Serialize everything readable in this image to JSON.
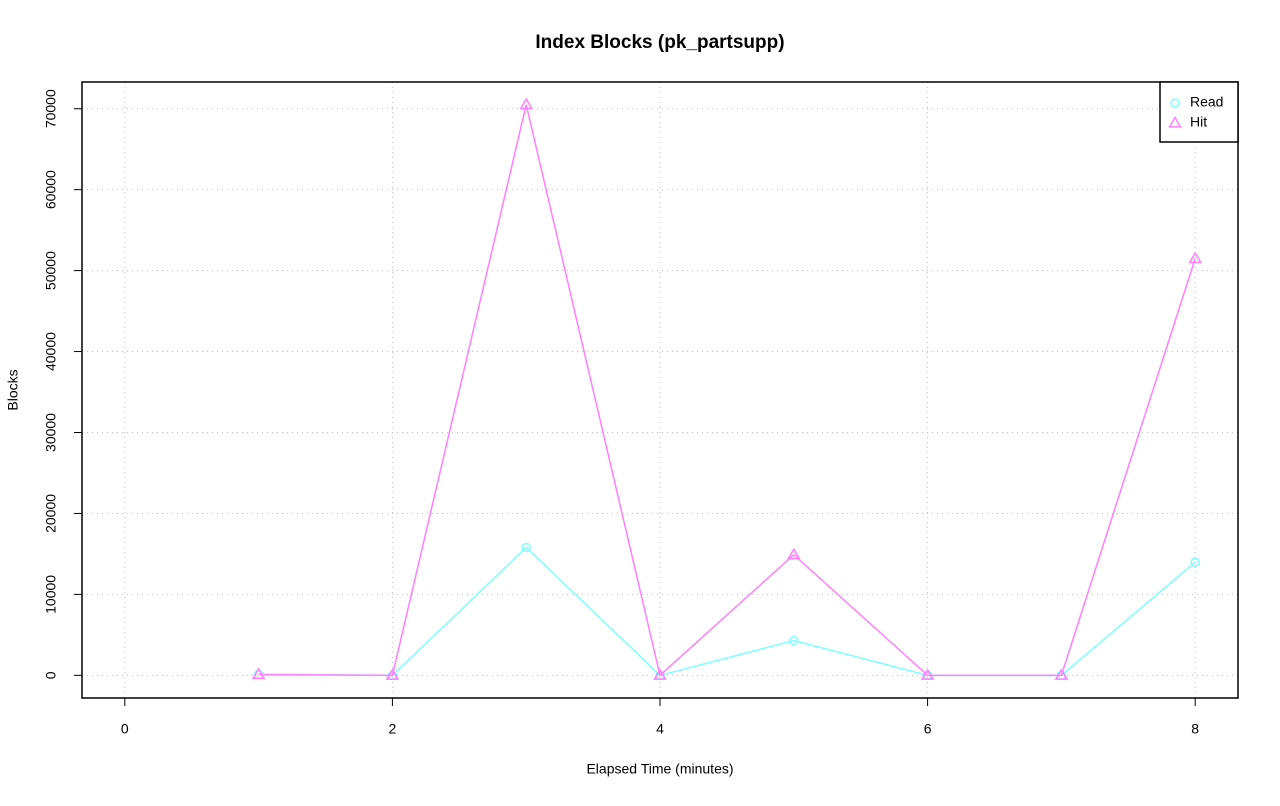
{
  "chart_data": {
    "type": "line",
    "title": "Index Blocks (pk_partsupp)",
    "x_label": "Elapsed Time (minutes)",
    "y_label": "Blocks",
    "x": [
      1,
      2,
      3,
      4,
      5,
      6,
      7,
      8
    ],
    "series": [
      {
        "name": "Read",
        "color": "#7fffff",
        "marker": "circle",
        "values": [
          100,
          0,
          15800,
          0,
          4300,
          0,
          0,
          14000
        ]
      },
      {
        "name": "Hit",
        "color": "#ff7fff",
        "marker": "triangle",
        "values": [
          100,
          0,
          70500,
          0,
          14900,
          0,
          0,
          51500
        ]
      }
    ],
    "xlim": [
      -0.32,
      8.32
    ],
    "xticks": [
      0,
      2,
      4,
      6,
      8
    ],
    "ylim": [
      -2800,
      73300
    ],
    "yticks": [
      0,
      10000,
      20000,
      30000,
      40000,
      50000,
      60000,
      70000
    ],
    "grid": true,
    "legend": "top-right"
  }
}
